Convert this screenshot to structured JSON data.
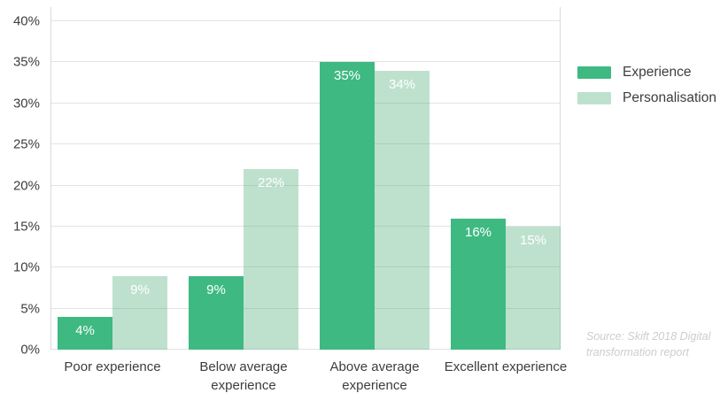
{
  "chart_data": {
    "type": "bar",
    "title": "",
    "categories": [
      "Poor experience",
      "Below average experience",
      "Above average experience",
      "Excellent experience"
    ],
    "series": [
      {
        "name": "Experience",
        "color": "#3eb982",
        "values": [
          4,
          9,
          35,
          16
        ]
      },
      {
        "name": "Personalisation",
        "color": "rgba(69,169,112,0.35)",
        "values": [
          9,
          22,
          34,
          15
        ]
      }
    ],
    "bar_value_labels": {
      "Experience": [
        "4%",
        "9%",
        "35%",
        "16%"
      ],
      "Personalisation": [
        "9%",
        "22%",
        "34%",
        "15%"
      ]
    },
    "xlabel": "",
    "ylabel": "",
    "ylim": [
      0,
      40
    ],
    "yticks": [
      "0%",
      "5%",
      "10%",
      "15%",
      "20%",
      "25%",
      "30%",
      "35%",
      "40%"
    ],
    "grid": "horizontal",
    "legend_position": "right"
  },
  "source_note": {
    "line1": "Source: Skift 2018 Digital",
    "line2": "transformation report"
  },
  "colors": {
    "background": "#ffffff",
    "series_experience": "#3eb982",
    "series_personalisation": "#bfe3d0",
    "gridline": "#e3e3e3",
    "axis_line": "#d9d9d9",
    "axis_text": "#3d3d3d",
    "bar_value_label": "#ffffff",
    "source_text": "#cdcdcd"
  }
}
